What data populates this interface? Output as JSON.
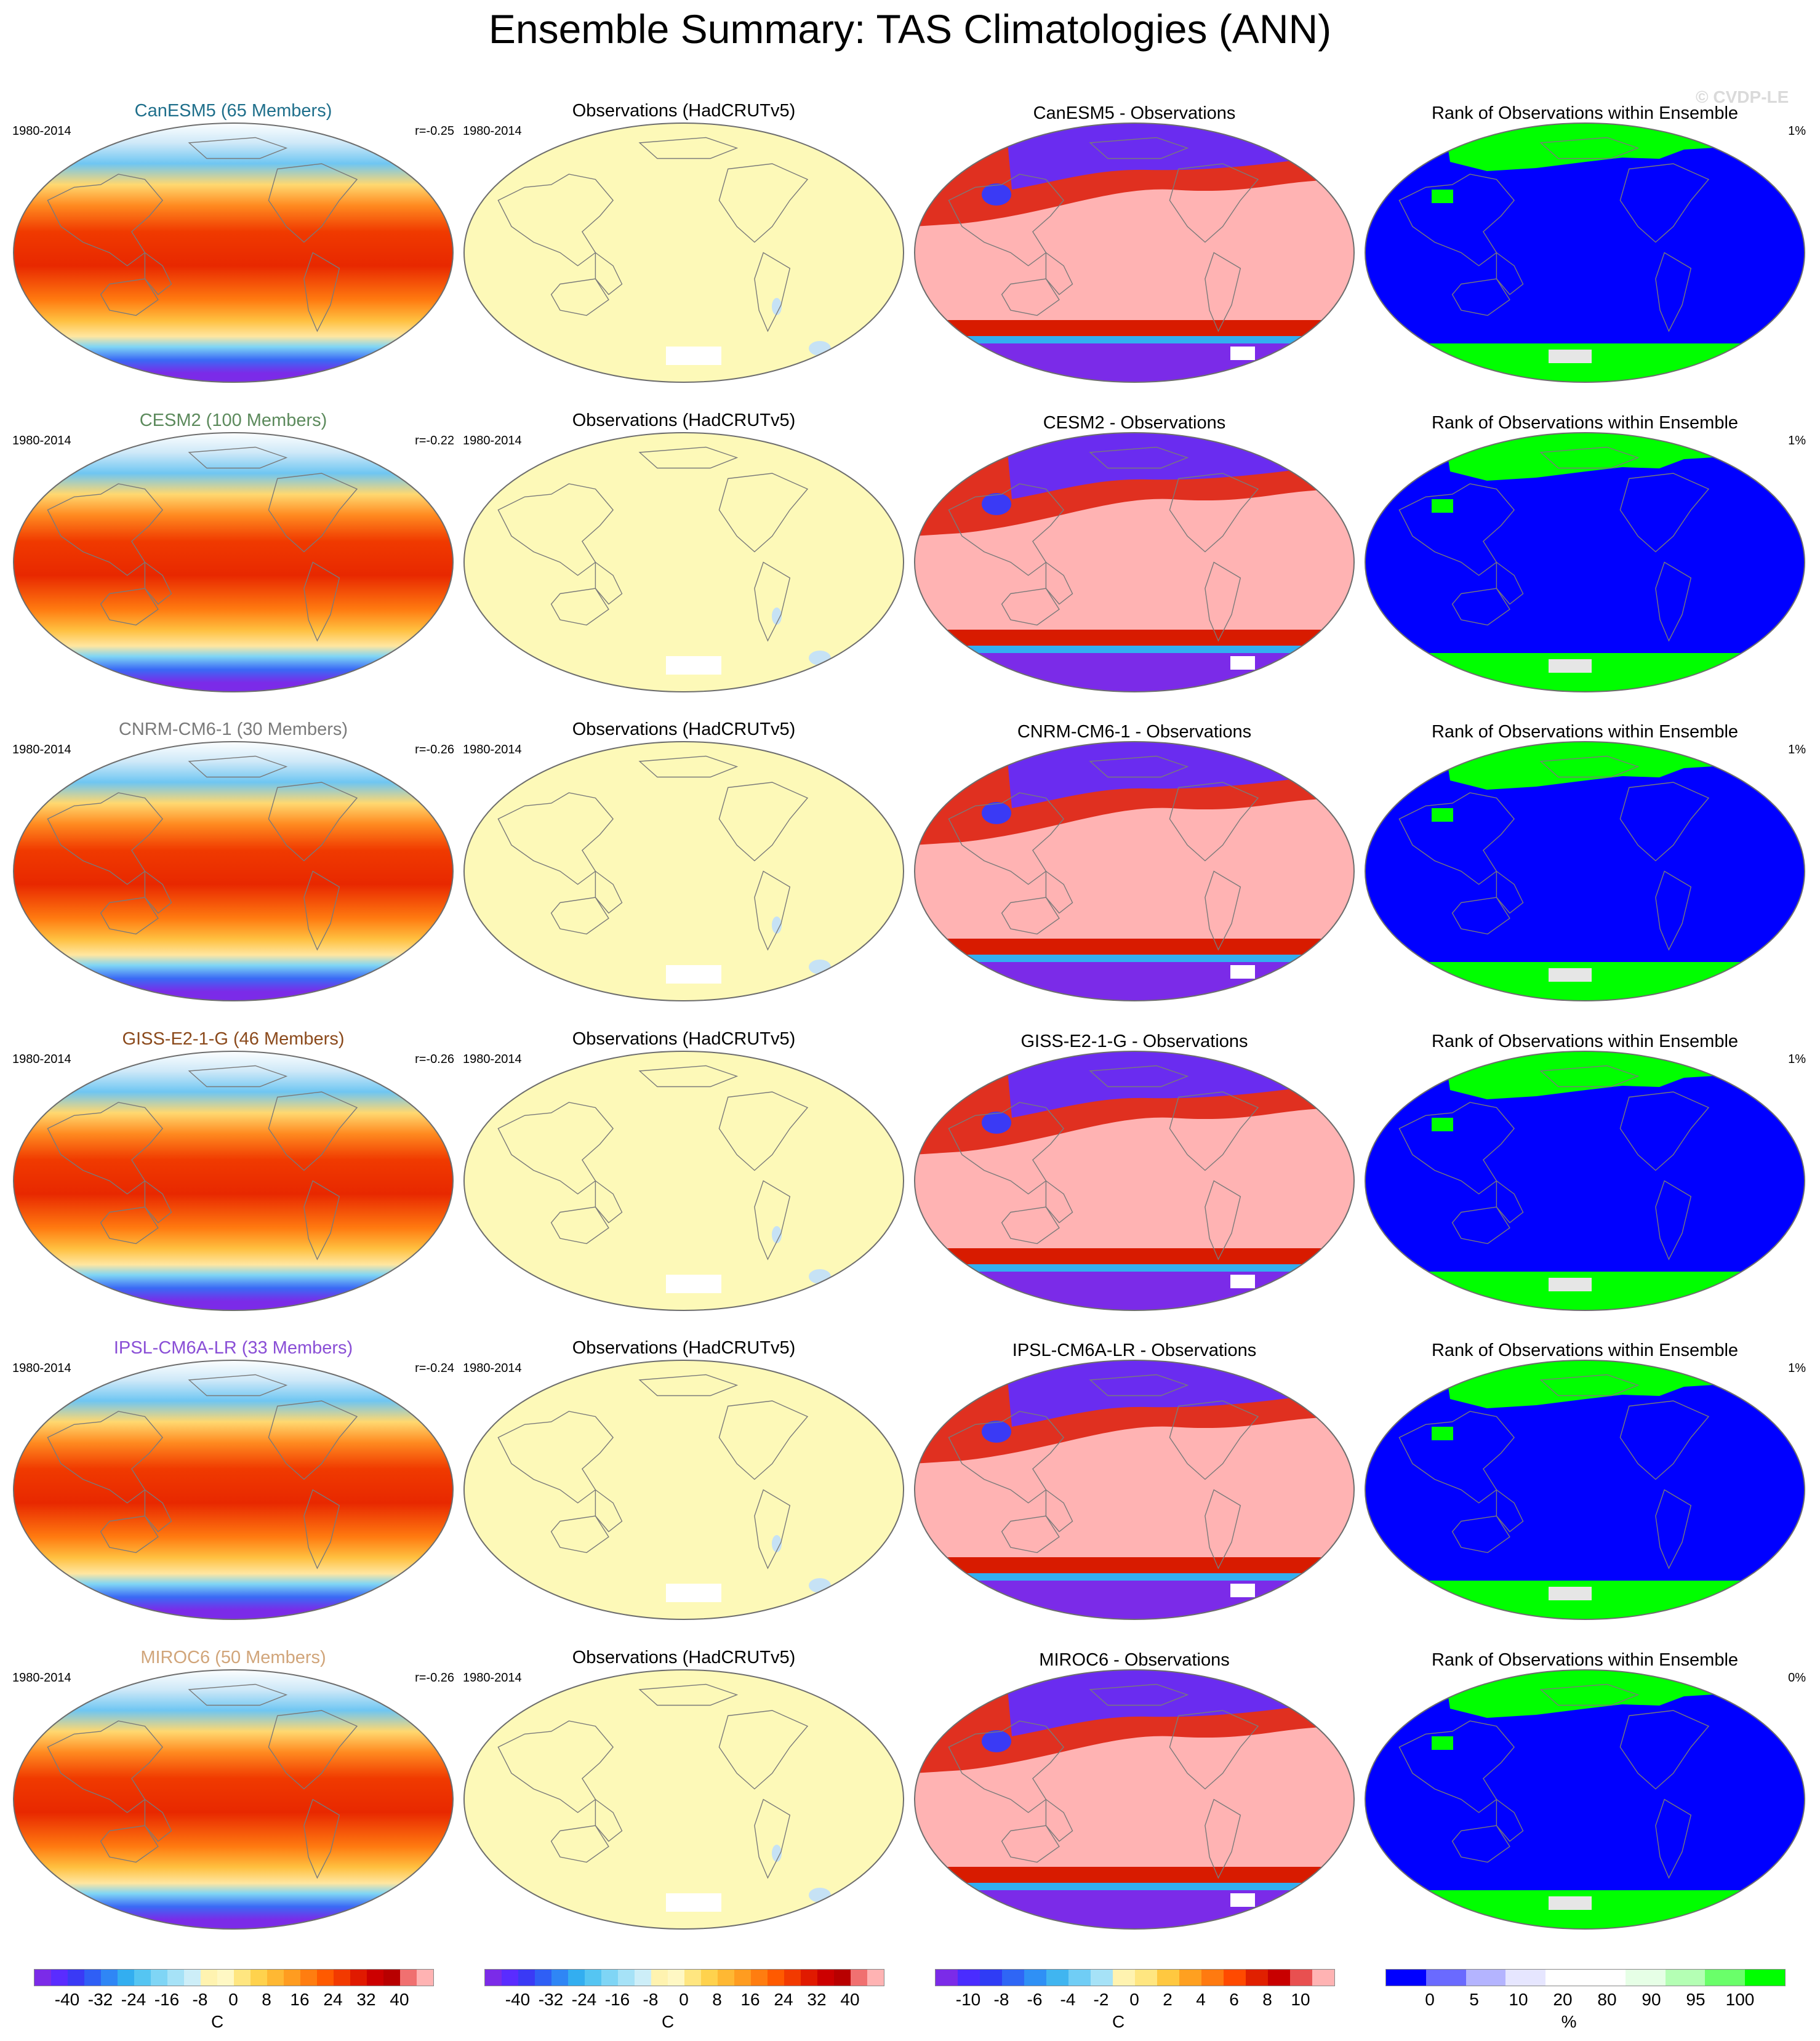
{
  "title": "Ensemble Summary: TAS Climatologies (ANN)",
  "watermark": "© CVDP-LE",
  "period": "1980-2014",
  "obs_title": "Observations (HadCRUTv5)",
  "rank_title": "Rank of Observations within Ensemble",
  "rows": [
    {
      "model": "CanESM5 (65 Members)",
      "model_color": "#1f6f8b",
      "r": "r=-0.25",
      "diff_title": "CanESM5 - Observations",
      "rank_pct": "1%"
    },
    {
      "model": "CESM2 (100 Members)",
      "model_color": "#5c8a5c",
      "r": "r=-0.22",
      "diff_title": "CESM2 - Observations",
      "rank_pct": "1%"
    },
    {
      "model": "CNRM-CM6-1 (30 Members)",
      "model_color": "#7a7a7a",
      "r": "r=-0.26",
      "diff_title": "CNRM-CM6-1 - Observations",
      "rank_pct": "1%"
    },
    {
      "model": "GISS-E2-1-G (46 Members)",
      "model_color": "#8b4a1c",
      "r": "r=-0.26",
      "diff_title": "GISS-E2-1-G - Observations",
      "rank_pct": "1%"
    },
    {
      "model": "IPSL-CM6A-LR (33 Members)",
      "model_color": "#8a4fd6",
      "r": "r=-0.24",
      "diff_title": "IPSL-CM6A-LR - Observations",
      "rank_pct": "1%"
    },
    {
      "model": "MIROC6 (50 Members)",
      "model_color": "#d1a57a",
      "r": "r=-0.26",
      "diff_title": "MIROC6 - Observations",
      "rank_pct": "0%"
    }
  ],
  "colorbars": [
    {
      "ticks": [
        "-40",
        "-32",
        "-24",
        "-16",
        "-8",
        "0",
        "8",
        "16",
        "24",
        "32",
        "40"
      ],
      "unit": "C",
      "colors": [
        "#7b2be8",
        "#5a2cff",
        "#3a3af5",
        "#2f5ff5",
        "#2f86f5",
        "#33aef0",
        "#55c5f2",
        "#7fd5f5",
        "#a6e2f7",
        "#cdeef8",
        "#fff3b0",
        "#fff8c4",
        "#ffe680",
        "#ffd24d",
        "#ffb833",
        "#ff9c20",
        "#ff7d10",
        "#ff5a00",
        "#f23a00",
        "#e01a00",
        "#cc0000",
        "#b80000",
        "#f07070",
        "#ffb3b3"
      ]
    },
    {
      "ticks": [
        "-40",
        "-32",
        "-24",
        "-16",
        "-8",
        "0",
        "8",
        "16",
        "24",
        "32",
        "40"
      ],
      "unit": "C",
      "colors": [
        "#7b2be8",
        "#5a2cff",
        "#3a3af5",
        "#2f5ff5",
        "#2f86f5",
        "#33aef0",
        "#55c5f2",
        "#7fd5f5",
        "#a6e2f7",
        "#cdeef8",
        "#fff3b0",
        "#fff8c4",
        "#ffe680",
        "#ffd24d",
        "#ffb833",
        "#ff9c20",
        "#ff7d10",
        "#ff5a00",
        "#f23a00",
        "#e01a00",
        "#cc0000",
        "#b80000",
        "#f07070",
        "#ffb3b3"
      ]
    },
    {
      "ticks": [
        "-10",
        "-8",
        "-6",
        "-4",
        "-2",
        "0",
        "2",
        "4",
        "6",
        "8",
        "10"
      ],
      "unit": "C",
      "colors": [
        "#7b2be8",
        "#4a2cff",
        "#2f3cf5",
        "#2f66f5",
        "#2f90f5",
        "#40b5f0",
        "#70cdf5",
        "#a6e2f7",
        "#fff3b0",
        "#ffe680",
        "#ffc840",
        "#ffa020",
        "#ff7a10",
        "#ff4a00",
        "#e02000",
        "#c80000",
        "#e85050",
        "#ffb3b3"
      ]
    },
    {
      "ticks": [
        "0",
        "5",
        "10",
        "20",
        "80",
        "90",
        "95",
        "100"
      ],
      "unit": "%",
      "colors": [
        "#0000ff",
        "#6a6aff",
        "#b4b4ff",
        "#e6e6ff",
        "#ffffff",
        "#ffffff",
        "#e6ffe6",
        "#b4ffb4",
        "#6aff6a",
        "#00ff00"
      ]
    }
  ]
}
